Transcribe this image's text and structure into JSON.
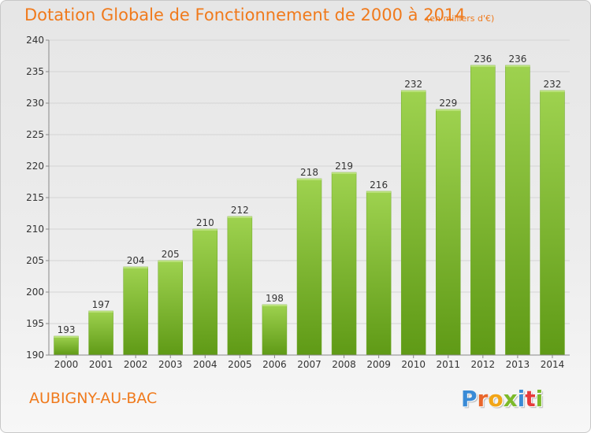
{
  "header": {
    "title": "Dotation Globale de Fonctionnement de 2000 à 2014",
    "subtitle": "(en milliers d'€)"
  },
  "footer": {
    "town": "AUBIGNY-AU-BAC",
    "logo": [
      "P",
      "r",
      "o",
      "x",
      "i",
      "t",
      "i"
    ],
    "logo_colors": [
      "#3a8bd6",
      "#e9662b",
      "#f2a516",
      "#7cba2a",
      "#3a8bd6",
      "#e63b3b",
      "#7cba2a"
    ]
  },
  "colors": {
    "bar_top": "#9ed24f",
    "bar_bottom": "#5f9a16",
    "accent": "#f07a1c",
    "grid": "#d4d4d4",
    "axis": "#888888",
    "text": "#333333"
  },
  "chart_data": {
    "type": "bar",
    "categories": [
      "2000",
      "2001",
      "2002",
      "2003",
      "2004",
      "2005",
      "2006",
      "2007",
      "2008",
      "2009",
      "2010",
      "2011",
      "2012",
      "2013",
      "2014"
    ],
    "values": [
      193,
      197,
      204,
      205,
      210,
      212,
      198,
      218,
      219,
      216,
      232,
      229,
      236,
      236,
      232
    ],
    "ylim": [
      190,
      240
    ],
    "yticks": [
      190,
      195,
      200,
      205,
      210,
      215,
      220,
      225,
      230,
      235,
      240
    ],
    "grid": true,
    "data_labels": true
  }
}
